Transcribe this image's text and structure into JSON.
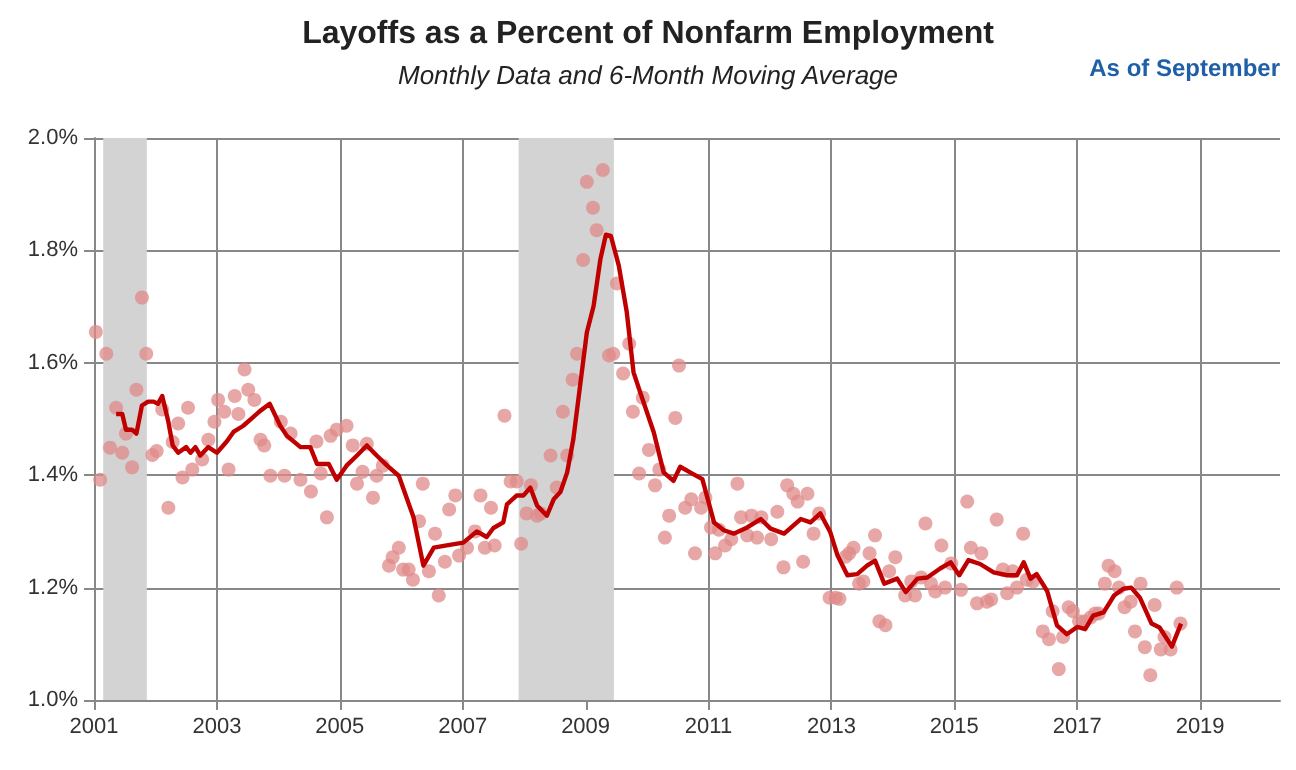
{
  "chart_data": {
    "type": "scatter",
    "title": "Layoffs as a Percent of Nonfarm Employment",
    "subtitle": "Monthly Data and 6-Month Moving Average",
    "annotations": [
      "As of September"
    ],
    "xlim": [
      2001,
      2020.3
    ],
    "xticks": [
      2001,
      2003,
      2005,
      2007,
      2009,
      2011,
      2013,
      2015,
      2017,
      2019
    ],
    "ylim": [
      1.0,
      2.0
    ],
    "yticks": [
      {
        "value": 1.0,
        "label": "1.0%"
      },
      {
        "value": 1.2,
        "label": "1.2%"
      },
      {
        "value": 1.4,
        "label": "1.4%"
      },
      {
        "value": 1.6,
        "label": "1.6%"
      },
      {
        "value": 1.8,
        "label": "1.8%"
      },
      {
        "value": 2.0,
        "label": "2.0%"
      }
    ],
    "grid": true,
    "bands": [
      {
        "axis": "x",
        "from": 2001.15,
        "to": 2001.86,
        "color": "#d3d3d3"
      },
      {
        "axis": "x",
        "from": 2007.91,
        "to": 2009.46,
        "color": "#d3d3d3"
      }
    ],
    "series": [
      {
        "marker": "circle",
        "color": "#e08a8a",
        "x": [
          2001.03,
          2001.1,
          2001.2,
          2001.26,
          2001.36,
          2001.46,
          2001.52,
          2001.62,
          2001.69,
          2001.78,
          2001.85,
          2001.95,
          2002.02,
          2002.11,
          2002.21,
          2002.28,
          2002.37,
          2002.44,
          2002.53,
          2002.6,
          2002.76,
          2002.86,
          2002.96,
          2003.02,
          2003.12,
          2003.19,
          2003.29,
          2003.35,
          2003.45,
          2003.51,
          2003.61,
          2003.71,
          2003.77,
          2003.87,
          2004.04,
          2004.1,
          2004.2,
          2004.36,
          2004.53,
          2004.62,
          2004.69,
          2004.79,
          2004.85,
          2004.95,
          2005.11,
          2005.21,
          2005.28,
          2005.37,
          2005.44,
          2005.54,
          2005.6,
          2005.7,
          2005.8,
          2005.86,
          2005.96,
          2006.03,
          2006.12,
          2006.19,
          2006.29,
          2006.35,
          2006.45,
          2006.55,
          2006.61,
          2006.71,
          2006.78,
          2006.88,
          2006.94,
          2007.07,
          2007.2,
          2007.29,
          2007.36,
          2007.46,
          2007.52,
          2007.68,
          2007.78,
          2007.88,
          2007.95,
          2008.04,
          2008.11,
          2008.21,
          2008.27,
          2008.43,
          2008.53,
          2008.63,
          2008.7,
          2008.79,
          2008.86,
          2008.96,
          2009.02,
          2009.12,
          2009.18,
          2009.28,
          2009.38,
          2009.45,
          2009.51,
          2009.61,
          2009.71,
          2009.77,
          2009.87,
          2009.93,
          2010.03,
          2010.13,
          2010.2,
          2010.29,
          2010.36,
          2010.46,
          2010.52,
          2010.62,
          2010.72,
          2010.78,
          2010.88,
          2010.95,
          2011.04,
          2011.11,
          2011.17,
          2011.27,
          2011.37,
          2011.47,
          2011.53,
          2011.63,
          2011.7,
          2011.79,
          2011.86,
          2012.02,
          2012.12,
          2012.22,
          2012.28,
          2012.38,
          2012.45,
          2012.54,
          2012.61,
          2012.71,
          2012.8,
          2012.97,
          2013.07,
          2013.13,
          2013.23,
          2013.29,
          2013.36,
          2013.45,
          2013.52,
          2013.62,
          2013.71,
          2013.78,
          2013.88,
          2013.94,
          2014.04,
          2014.2,
          2014.3,
          2014.36,
          2014.46,
          2014.53,
          2014.62,
          2014.69,
          2014.79,
          2014.85,
          2014.95,
          2015.11,
          2015.21,
          2015.27,
          2015.37,
          2015.44,
          2015.53,
          2015.6,
          2015.69,
          2015.79,
          2015.86,
          2015.95,
          2016.02,
          2016.12,
          2016.18,
          2016.28,
          2016.44,
          2016.54,
          2016.6,
          2016.7,
          2016.77,
          2016.86,
          2016.93,
          2017.03,
          2017.12,
          2017.22,
          2017.29,
          2017.35,
          2017.45,
          2017.51,
          2017.61,
          2017.68,
          2017.77,
          2017.87,
          2017.94,
          2018.03,
          2018.1,
          2018.19,
          2018.26,
          2018.36,
          2018.42,
          2018.52,
          2018.62,
          2018.68
        ],
        "values": [
          1.655,
          1.392,
          1.616,
          1.449,
          1.52,
          1.44,
          1.474,
          1.414,
          1.552,
          1.716,
          1.616,
          1.436,
          1.443,
          1.517,
          1.342,
          1.459,
          1.492,
          1.396,
          1.52,
          1.41,
          1.428,
          1.463,
          1.495,
          1.534,
          1.513,
          1.41,
          1.541,
          1.509,
          1.588,
          1.552,
          1.534,
          1.463,
          1.453,
          1.399,
          1.495,
          1.399,
          1.474,
          1.392,
          1.371,
          1.46,
          1.403,
          1.325,
          1.47,
          1.481,
          1.488,
          1.453,
          1.385,
          1.406,
          1.456,
          1.36,
          1.399,
          1.417,
          1.239,
          1.254,
          1.271,
          1.232,
          1.232,
          1.214,
          1.318,
          1.385,
          1.229,
          1.296,
          1.186,
          1.246,
          1.339,
          1.364,
          1.257,
          1.271,
          1.3,
          1.364,
          1.271,
          1.342,
          1.275,
          1.506,
          1.389,
          1.389,
          1.278,
          1.332,
          1.382,
          1.328,
          1.332,
          1.435,
          1.378,
          1.513,
          1.435,
          1.57,
          1.616,
          1.783,
          1.922,
          1.876,
          1.836,
          1.943,
          1.613,
          1.616,
          1.741,
          1.581,
          1.634,
          1.513,
          1.403,
          1.538,
          1.445,
          1.382,
          1.41,
          1.289,
          1.328,
          1.502,
          1.595,
          1.342,
          1.357,
          1.261,
          1.342,
          1.36,
          1.307,
          1.261,
          1.303,
          1.275,
          1.286,
          1.385,
          1.325,
          1.293,
          1.328,
          1.289,
          1.325,
          1.286,
          1.335,
          1.236,
          1.382,
          1.367,
          1.353,
          1.246,
          1.367,
          1.296,
          1.332,
          1.182,
          1.182,
          1.18,
          1.255,
          1.261,
          1.271,
          1.207,
          1.211,
          1.261,
          1.293,
          1.14,
          1.133,
          1.229,
          1.254,
          1.186,
          1.211,
          1.186,
          1.218,
          1.314,
          1.207,
          1.193,
          1.275,
          1.2,
          1.243,
          1.196,
          1.353,
          1.271,
          1.172,
          1.261,
          1.175,
          1.179,
          1.321,
          1.232,
          1.19,
          1.229,
          1.2,
          1.296,
          1.214,
          1.211,
          1.122,
          1.108,
          1.158,
          1.055,
          1.112,
          1.165,
          1.158,
          1.14,
          1.14,
          1.147,
          1.154,
          1.154,
          1.207,
          1.239,
          1.229,
          1.2,
          1.165,
          1.175,
          1.122,
          1.207,
          1.094,
          1.044,
          1.169,
          1.09,
          1.112,
          1.09,
          1.2,
          1.136
        ]
      },
      {
        "type": "line",
        "marker": "none",
        "line_style": "solid",
        "color": "#c00000",
        "x": [
          2001.36,
          2001.46,
          2001.52,
          2001.62,
          2001.69,
          2001.78,
          2001.88,
          2001.97,
          2002.04,
          2002.11,
          2002.21,
          2002.28,
          2002.37,
          2002.5,
          2002.57,
          2002.65,
          2002.73,
          2002.86,
          2003.0,
          2003.16,
          2003.27,
          2003.43,
          2003.7,
          2003.86,
          2004.03,
          2004.14,
          2004.36,
          2004.52,
          2004.63,
          2004.82,
          2004.95,
          2005.11,
          2005.28,
          2005.44,
          2005.6,
          2005.77,
          2005.96,
          2006.2,
          2006.36,
          2006.53,
          2006.74,
          2007.01,
          2007.23,
          2007.39,
          2007.5,
          2007.66,
          2007.72,
          2007.88,
          2007.99,
          2008.1,
          2008.21,
          2008.37,
          2008.48,
          2008.59,
          2008.7,
          2008.8,
          2008.91,
          2009.02,
          2009.13,
          2009.24,
          2009.33,
          2009.41,
          2009.54,
          2009.67,
          2009.78,
          2009.89,
          2010.11,
          2010.27,
          2010.43,
          2010.54,
          2010.7,
          2010.9,
          2011.09,
          2011.25,
          2011.41,
          2011.63,
          2011.85,
          2012.01,
          2012.23,
          2012.5,
          2012.66,
          2012.82,
          2012.98,
          2013.1,
          2013.26,
          2013.42,
          2013.58,
          2013.71,
          2013.86,
          2014.07,
          2014.21,
          2014.4,
          2014.56,
          2014.77,
          2014.94,
          2015.08,
          2015.23,
          2015.42,
          2015.64,
          2015.86,
          2016.02,
          2016.13,
          2016.24,
          2016.34,
          2016.51,
          2016.67,
          2016.83,
          2017.0,
          2017.13,
          2017.26,
          2017.43,
          2017.6,
          2017.75,
          2017.88,
          2018.02,
          2018.21,
          2018.34,
          2018.54,
          2018.69
        ],
        "values": [
          1.509,
          1.509,
          1.481,
          1.481,
          1.474,
          1.524,
          1.531,
          1.531,
          1.527,
          1.541,
          1.495,
          1.453,
          1.44,
          1.45,
          1.44,
          1.45,
          1.435,
          1.45,
          1.44,
          1.46,
          1.477,
          1.488,
          1.514,
          1.527,
          1.488,
          1.47,
          1.45,
          1.45,
          1.42,
          1.42,
          1.392,
          1.417,
          1.435,
          1.453,
          1.435,
          1.417,
          1.399,
          1.325,
          1.239,
          1.271,
          1.275,
          1.28,
          1.3,
          1.29,
          1.306,
          1.316,
          1.348,
          1.364,
          1.364,
          1.378,
          1.346,
          1.328,
          1.357,
          1.37,
          1.405,
          1.464,
          1.559,
          1.654,
          1.701,
          1.784,
          1.828,
          1.826,
          1.773,
          1.69,
          1.583,
          1.547,
          1.476,
          1.405,
          1.39,
          1.415,
          1.405,
          1.393,
          1.316,
          1.302,
          1.296,
          1.307,
          1.322,
          1.305,
          1.296,
          1.322,
          1.316,
          1.332,
          1.299,
          1.257,
          1.222,
          1.224,
          1.239,
          1.248,
          1.207,
          1.216,
          1.192,
          1.216,
          1.218,
          1.234,
          1.245,
          1.222,
          1.249,
          1.242,
          1.227,
          1.222,
          1.222,
          1.245,
          1.216,
          1.224,
          1.194,
          1.133,
          1.117,
          1.13,
          1.126,
          1.15,
          1.156,
          1.186,
          1.198,
          1.2,
          1.182,
          1.136,
          1.129,
          1.095,
          1.136
        ]
      }
    ]
  }
}
